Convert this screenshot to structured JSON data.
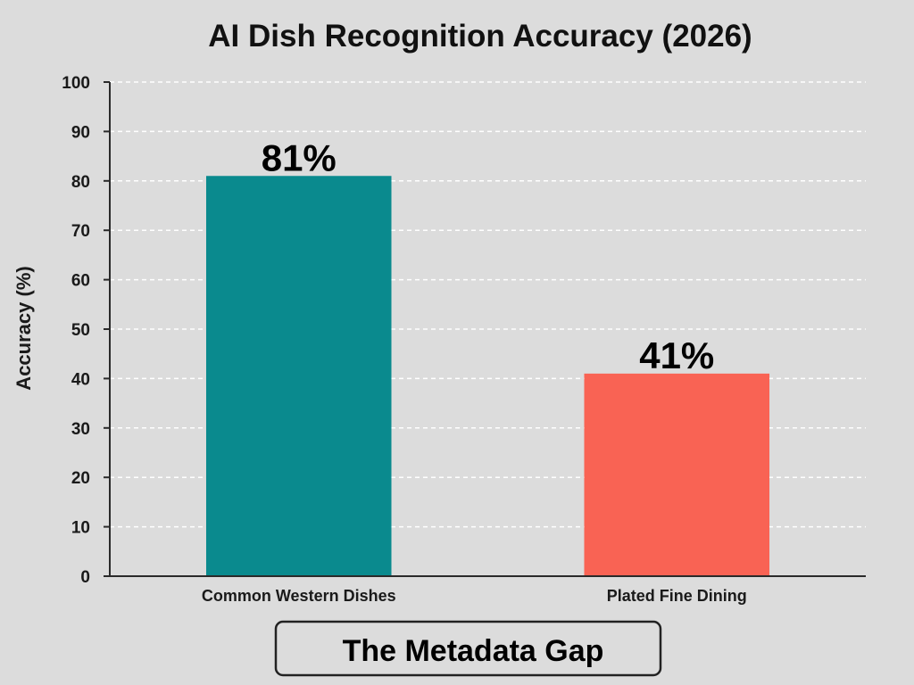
{
  "chart_data": {
    "type": "bar",
    "title": "AI Dish Recognition Accuracy (2026)",
    "xlabel": "",
    "ylabel": "Accuracy (%)",
    "categories": [
      "Common Western Dishes",
      "Plated Fine Dining"
    ],
    "values": [
      81,
      41
    ],
    "value_labels": [
      "81%",
      "41%"
    ],
    "colors": [
      "#0a8a8e",
      "#f96354"
    ],
    "ylim": [
      0,
      100
    ],
    "yticks": [
      0,
      10,
      20,
      30,
      40,
      50,
      60,
      70,
      80,
      90,
      100
    ],
    "grid": true,
    "legend": "none",
    "annotation": "The Metadata Gap"
  }
}
